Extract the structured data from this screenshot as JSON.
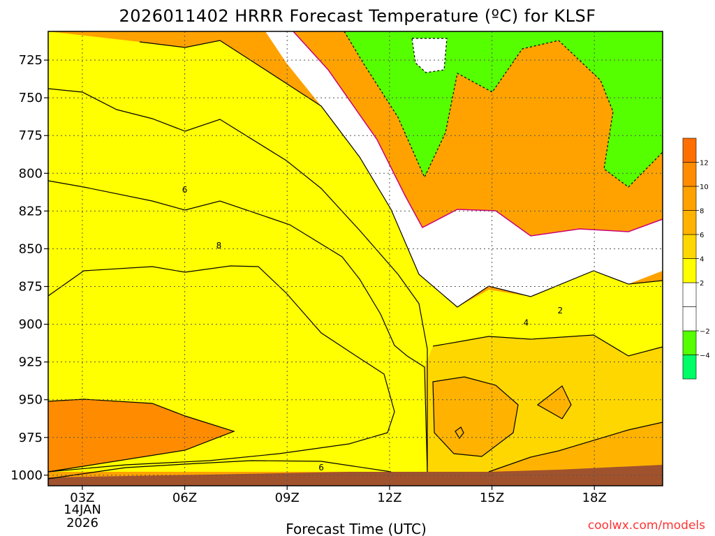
{
  "chart_data": {
    "type": "heatmap",
    "title": "2026011402 HRRR Forecast Temperature (ºC) for KLSF",
    "xlabel": "Forecast Time (UTC)",
    "ylabel": "",
    "x_ticks": [
      {
        "hour": 3,
        "label": "03Z"
      },
      {
        "hour": 6,
        "label": "06Z"
      },
      {
        "hour": 9,
        "label": "09Z"
      },
      {
        "hour": 12,
        "label": "12Z"
      },
      {
        "hour": 15,
        "label": "15Z"
      },
      {
        "hour": 18,
        "label": "18Z"
      }
    ],
    "x_subtitle": [
      "14JAN",
      "2026"
    ],
    "xlim": [
      2,
      20
    ],
    "y_ticks": [
      {
        "p": 725,
        "label": "725"
      },
      {
        "p": 750,
        "label": "750"
      },
      {
        "p": 775,
        "label": "775"
      },
      {
        "p": 800,
        "label": "800"
      },
      {
        "p": 825,
        "label": "825"
      },
      {
        "p": 850,
        "label": "850"
      },
      {
        "p": 875,
        "label": "875"
      },
      {
        "p": 900,
        "label": "900"
      },
      {
        "p": 925,
        "label": "925"
      },
      {
        "p": 950,
        "label": "950"
      },
      {
        "p": 975,
        "label": "975"
      },
      {
        "p": 1000,
        "label": "1000"
      }
    ],
    "ylim_hPa": [
      706,
      1007
    ],
    "colorbar": [
      {
        "min": -6,
        "max": -4,
        "color": "#00ff66"
      },
      {
        "min": -4,
        "max": -2,
        "color": "#55ff00"
      },
      {
        "min": -2,
        "max": 0,
        "color": "#ffffff"
      },
      {
        "min": 0,
        "max": 2,
        "color": "#ffffff"
      },
      {
        "min": 2,
        "max": 4,
        "color": "#ffff00"
      },
      {
        "min": 4,
        "max": 6,
        "color": "#ffd700"
      },
      {
        "min": 6,
        "max": 8,
        "color": "#ffb300"
      },
      {
        "min": 8,
        "max": 10,
        "color": "#ffa200"
      },
      {
        "min": 10,
        "max": 12,
        "color": "#ff8c00"
      },
      {
        "min": 12,
        "max": 14,
        "color": "#ff6f00"
      }
    ],
    "colorbar_labels": [
      "12",
      "10",
      "8",
      "6",
      "4",
      "2",
      "−2",
      "−4"
    ],
    "contour_labels": [
      {
        "value": "6",
        "hour": 6.0,
        "p": 811
      },
      {
        "value": "8",
        "hour": 7.0,
        "p": 848
      },
      {
        "value": "6",
        "hour": 10.0,
        "p": 995
      },
      {
        "value": "4",
        "hour": 16.0,
        "p": 899
      },
      {
        "value": "2",
        "hour": 17.0,
        "p": 891
      }
    ],
    "colors": {
      "white_area": "#ffffff",
      "yellow": "#ffff00",
      "gold": "#ffd700",
      "orange_light": "#ffb300",
      "orange": "#ffa200",
      "orange_dark": "#ff8c00",
      "green": "#55ff00",
      "ground": "#a0522d",
      "zero_line": "#cc0077"
    }
  },
  "credit": "coolwx.com/models"
}
